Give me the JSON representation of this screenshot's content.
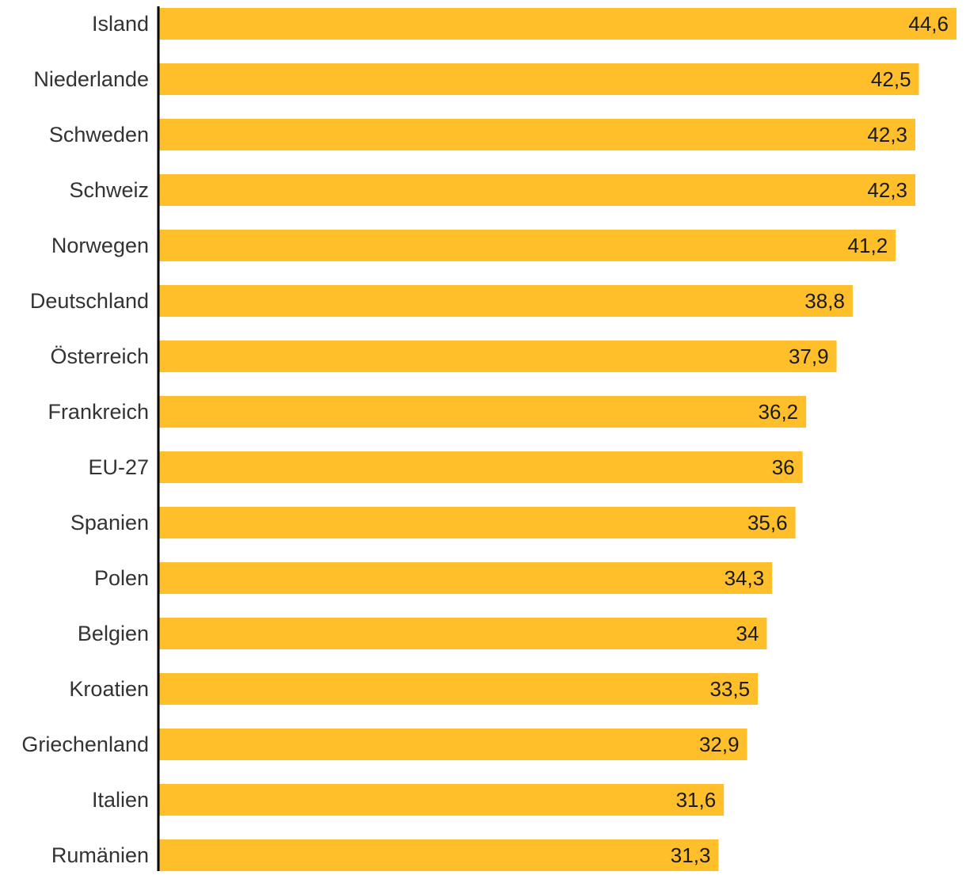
{
  "chart_data": {
    "type": "bar",
    "orientation": "horizontal",
    "categories": [
      "Island",
      "Niederlande",
      "Schweden",
      "Schweiz",
      "Norwegen",
      "Deutschland",
      "Österreich",
      "Frankreich",
      "EU-27",
      "Spanien",
      "Polen",
      "Belgien",
      "Kroatien",
      "Griechenland",
      "Italien",
      "Rumänien"
    ],
    "values": [
      44.6,
      42.5,
      42.3,
      42.3,
      41.2,
      38.8,
      37.9,
      36.2,
      36,
      35.6,
      34.3,
      34,
      33.5,
      32.9,
      31.6,
      31.3
    ],
    "value_labels": [
      "44,6",
      "42,5",
      "42,3",
      "42,3",
      "41,2",
      "38,8",
      "37,9",
      "36,2",
      "36",
      "35,6",
      "34,3",
      "34",
      "33,5",
      "32,9",
      "31,6",
      "31,3"
    ],
    "xlim": [
      0,
      44.6
    ],
    "grid": false,
    "bar_color": "#FFBF2B",
    "axis_color": "#000000"
  }
}
